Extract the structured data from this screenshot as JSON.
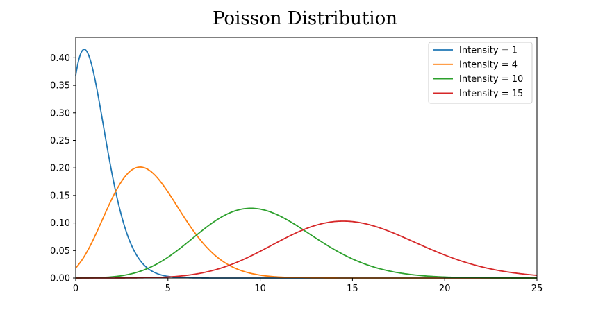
{
  "chart_data": {
    "type": "line",
    "title": "Poisson Distribution",
    "xlabel": "",
    "ylabel": "",
    "xlim": [
      0,
      25
    ],
    "ylim": [
      0,
      0.437
    ],
    "x_ticks": [
      0,
      5,
      10,
      15,
      20,
      25
    ],
    "x_tick_labels": [
      "0",
      "5",
      "10",
      "15",
      "20",
      "25"
    ],
    "y_ticks": [
      0.0,
      0.05,
      0.1,
      0.15,
      0.2,
      0.25,
      0.3,
      0.35,
      0.4
    ],
    "y_tick_labels": [
      "0.00",
      "0.05",
      "0.10",
      "0.15",
      "0.20",
      "0.25",
      "0.30",
      "0.35",
      "0.40"
    ],
    "grid": false,
    "legend_position": "top-right",
    "series": [
      {
        "name": "Intensity = 1",
        "lambda": 1,
        "color": "#1f77b4"
      },
      {
        "name": "Intensity = 4",
        "lambda": 4,
        "color": "#ff7f0e"
      },
      {
        "name": "Intensity = 10",
        "lambda": 10,
        "color": "#2ca02c"
      },
      {
        "name": "Intensity = 15",
        "lambda": 15,
        "color": "#d62728"
      }
    ],
    "x": [
      0,
      0.5,
      1,
      1.5,
      2,
      2.5,
      3,
      3.5,
      4,
      4.5,
      5,
      6,
      7,
      8,
      9,
      10,
      11,
      12,
      13,
      14,
      15,
      16,
      17,
      18,
      19,
      20,
      21,
      22,
      23,
      24,
      25
    ]
  }
}
